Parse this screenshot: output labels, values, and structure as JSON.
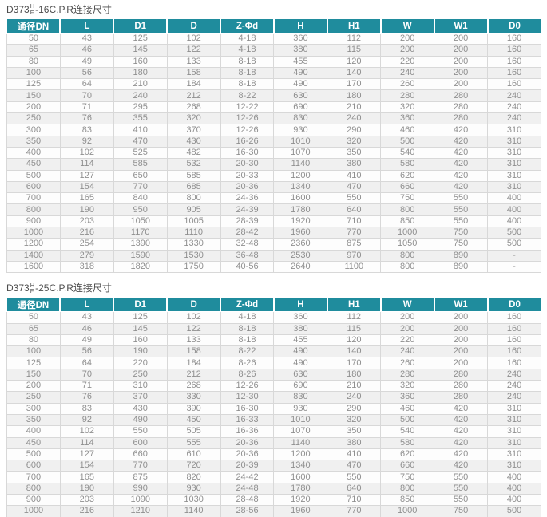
{
  "colors": {
    "header_bg": "#1f8c9d",
    "header_text": "#ffffff",
    "row_alt_bg": "#f0f0f0",
    "border": "#d8d8d8",
    "cell_text": "#8f8f8f",
    "title_text": "#4d4d4d"
  },
  "tables": [
    {
      "title_prefix": "D373",
      "title_sup": "H",
      "title_sub": "F",
      "title_suffix": "-16C.P.R连接尺寸",
      "columns": [
        "通径DN",
        "L",
        "D1",
        "D",
        "Z-Φd",
        "H",
        "H1",
        "W",
        "W1",
        "D0"
      ],
      "rows": [
        [
          "50",
          "43",
          "125",
          "102",
          "4-18",
          "360",
          "112",
          "200",
          "200",
          "160"
        ],
        [
          "65",
          "46",
          "145",
          "122",
          "4-18",
          "380",
          "115",
          "200",
          "200",
          "160"
        ],
        [
          "80",
          "49",
          "160",
          "133",
          "8-18",
          "455",
          "120",
          "220",
          "200",
          "160"
        ],
        [
          "100",
          "56",
          "180",
          "158",
          "8-18",
          "490",
          "140",
          "240",
          "200",
          "160"
        ],
        [
          "125",
          "64",
          "210",
          "184",
          "8-18",
          "490",
          "170",
          "260",
          "200",
          "160"
        ],
        [
          "150",
          "70",
          "240",
          "212",
          "8-22",
          "630",
          "180",
          "280",
          "280",
          "240"
        ],
        [
          "200",
          "71",
          "295",
          "268",
          "12-22",
          "690",
          "210",
          "320",
          "280",
          "240"
        ],
        [
          "250",
          "76",
          "355",
          "320",
          "12-26",
          "830",
          "240",
          "360",
          "280",
          "240"
        ],
        [
          "300",
          "83",
          "410",
          "370",
          "12-26",
          "930",
          "290",
          "460",
          "420",
          "310"
        ],
        [
          "350",
          "92",
          "470",
          "430",
          "16-26",
          "1010",
          "320",
          "500",
          "420",
          "310"
        ],
        [
          "400",
          "102",
          "525",
          "482",
          "16-30",
          "1070",
          "350",
          "540",
          "420",
          "310"
        ],
        [
          "450",
          "114",
          "585",
          "532",
          "20-30",
          "1140",
          "380",
          "580",
          "420",
          "310"
        ],
        [
          "500",
          "127",
          "650",
          "585",
          "20-33",
          "1200",
          "410",
          "620",
          "420",
          "310"
        ],
        [
          "600",
          "154",
          "770",
          "685",
          "20-36",
          "1340",
          "470",
          "660",
          "420",
          "310"
        ],
        [
          "700",
          "165",
          "840",
          "800",
          "24-36",
          "1600",
          "550",
          "750",
          "550",
          "400"
        ],
        [
          "800",
          "190",
          "950",
          "905",
          "24-39",
          "1780",
          "640",
          "800",
          "550",
          "400"
        ],
        [
          "900",
          "203",
          "1050",
          "1005",
          "28-39",
          "1920",
          "710",
          "850",
          "550",
          "400"
        ],
        [
          "1000",
          "216",
          "1170",
          "1110",
          "28-42",
          "1960",
          "770",
          "1000",
          "750",
          "500"
        ],
        [
          "1200",
          "254",
          "1390",
          "1330",
          "32-48",
          "2360",
          "875",
          "1050",
          "750",
          "500"
        ],
        [
          "1400",
          "279",
          "1590",
          "1530",
          "36-48",
          "2530",
          "970",
          "800",
          "890",
          "-"
        ],
        [
          "1600",
          "318",
          "1820",
          "1750",
          "40-56",
          "2640",
          "1100",
          "800",
          "890",
          "-"
        ]
      ]
    },
    {
      "title_prefix": "D373",
      "title_sup": "H",
      "title_sub": "F",
      "title_suffix": "-25C.P.R连接尺寸",
      "columns": [
        "通径DN",
        "L",
        "D1",
        "D",
        "Z-Φd",
        "H",
        "H1",
        "W",
        "W1",
        "D0"
      ],
      "rows": [
        [
          "50",
          "43",
          "125",
          "102",
          "4-18",
          "360",
          "112",
          "200",
          "200",
          "160"
        ],
        [
          "65",
          "46",
          "145",
          "122",
          "8-18",
          "380",
          "115",
          "200",
          "200",
          "160"
        ],
        [
          "80",
          "49",
          "160",
          "133",
          "8-18",
          "455",
          "120",
          "220",
          "200",
          "160"
        ],
        [
          "100",
          "56",
          "190",
          "158",
          "8-22",
          "490",
          "140",
          "240",
          "200",
          "160"
        ],
        [
          "125",
          "64",
          "220",
          "184",
          "8-26",
          "490",
          "170",
          "260",
          "200",
          "160"
        ],
        [
          "150",
          "70",
          "250",
          "212",
          "8-26",
          "630",
          "180",
          "280",
          "280",
          "240"
        ],
        [
          "200",
          "71",
          "310",
          "268",
          "12-26",
          "690",
          "210",
          "320",
          "280",
          "240"
        ],
        [
          "250",
          "76",
          "370",
          "330",
          "12-30",
          "830",
          "240",
          "360",
          "280",
          "240"
        ],
        [
          "300",
          "83",
          "430",
          "390",
          "16-30",
          "930",
          "290",
          "460",
          "420",
          "310"
        ],
        [
          "350",
          "92",
          "490",
          "450",
          "16-33",
          "1010",
          "320",
          "500",
          "420",
          "310"
        ],
        [
          "400",
          "102",
          "550",
          "505",
          "16-36",
          "1070",
          "350",
          "540",
          "420",
          "310"
        ],
        [
          "450",
          "114",
          "600",
          "555",
          "20-36",
          "1140",
          "380",
          "580",
          "420",
          "310"
        ],
        [
          "500",
          "127",
          "660",
          "610",
          "20-36",
          "1200",
          "410",
          "620",
          "420",
          "310"
        ],
        [
          "600",
          "154",
          "770",
          "720",
          "20-39",
          "1340",
          "470",
          "660",
          "420",
          "310"
        ],
        [
          "700",
          "165",
          "875",
          "820",
          "24-42",
          "1600",
          "550",
          "750",
          "550",
          "400"
        ],
        [
          "800",
          "190",
          "990",
          "930",
          "24-48",
          "1780",
          "640",
          "800",
          "550",
          "400"
        ],
        [
          "900",
          "203",
          "1090",
          "1030",
          "28-48",
          "1920",
          "710",
          "850",
          "550",
          "400"
        ],
        [
          "1000",
          "216",
          "1210",
          "1140",
          "28-56",
          "1960",
          "770",
          "1000",
          "750",
          "500"
        ]
      ]
    }
  ]
}
